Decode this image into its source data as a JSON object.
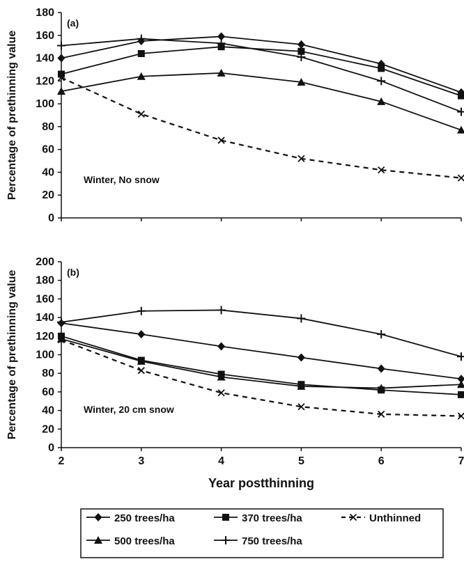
{
  "chart_data": [
    {
      "type": "line",
      "panel_label": "(a)",
      "annotation": "Winter, No snow",
      "xlabel": "",
      "ylabel": "Percentage of prethinning value",
      "x": [
        2,
        3,
        4,
        5,
        6,
        7
      ],
      "xlim": [
        2,
        7
      ],
      "ylim": [
        0,
        180
      ],
      "yticks": [
        0,
        20,
        40,
        60,
        80,
        100,
        120,
        140,
        160,
        180
      ],
      "xticks": [],
      "grid": false,
      "series": [
        {
          "name": "250 trees/ha",
          "marker": "diamond",
          "dash": "solid",
          "values": [
            140,
            155,
            159,
            152,
            135,
            110
          ]
        },
        {
          "name": "370 trees/ha",
          "marker": "square",
          "dash": "solid",
          "values": [
            126,
            144,
            150,
            146,
            131,
            107
          ]
        },
        {
          "name": "Unthinned",
          "marker": "x",
          "dash": "dashed",
          "values": [
            123,
            91,
            68,
            52,
            42,
            35
          ]
        },
        {
          "name": "500 trees/ha",
          "marker": "triangle",
          "dash": "solid",
          "values": [
            111,
            124,
            127,
            119,
            102,
            77
          ]
        },
        {
          "name": "750 trees/ha",
          "marker": "plus",
          "dash": "solid",
          "values": [
            151,
            157,
            153,
            141,
            120,
            93
          ]
        }
      ]
    },
    {
      "type": "line",
      "panel_label": "(b)",
      "annotation": "Winter, 20 cm snow",
      "xlabel": "Year postthinning",
      "ylabel": "Percentage of prethinning value",
      "x": [
        2,
        3,
        4,
        5,
        6,
        7
      ],
      "xlim": [
        2,
        7
      ],
      "ylim": [
        0,
        200
      ],
      "yticks": [
        0,
        20,
        40,
        60,
        80,
        100,
        120,
        140,
        160,
        180,
        200
      ],
      "xticks": [
        2,
        3,
        4,
        5,
        6,
        7
      ],
      "grid": false,
      "series": [
        {
          "name": "250 trees/ha",
          "marker": "diamond",
          "dash": "solid",
          "values": [
            134,
            122,
            109,
            97,
            85,
            74
          ]
        },
        {
          "name": "370 trees/ha",
          "marker": "square",
          "dash": "solid",
          "values": [
            120,
            94,
            79,
            68,
            62,
            57
          ]
        },
        {
          "name": "Unthinned",
          "marker": "x",
          "dash": "dashed",
          "values": [
            116,
            83,
            59,
            44,
            36,
            34
          ]
        },
        {
          "name": "500 trees/ha",
          "marker": "triangle",
          "dash": "solid",
          "values": [
            117,
            93,
            76,
            66,
            64,
            68
          ]
        },
        {
          "name": "750 trees/ha",
          "marker": "plus",
          "dash": "solid",
          "values": [
            135,
            147,
            148,
            139,
            122,
            98
          ]
        }
      ]
    }
  ],
  "legend": {
    "placement": "bottom",
    "items": [
      {
        "name": "250 trees/ha",
        "marker": "diamond",
        "dash": "solid"
      },
      {
        "name": "370 trees/ha",
        "marker": "square",
        "dash": "solid"
      },
      {
        "name": "Unthinned",
        "marker": "x",
        "dash": "dashed"
      },
      {
        "name": "500 trees/ha",
        "marker": "triangle",
        "dash": "solid"
      },
      {
        "name": "750 trees/ha",
        "marker": "plus",
        "dash": "solid"
      }
    ]
  },
  "colors": {
    "ink": "#111111",
    "background": "#ffffff"
  }
}
